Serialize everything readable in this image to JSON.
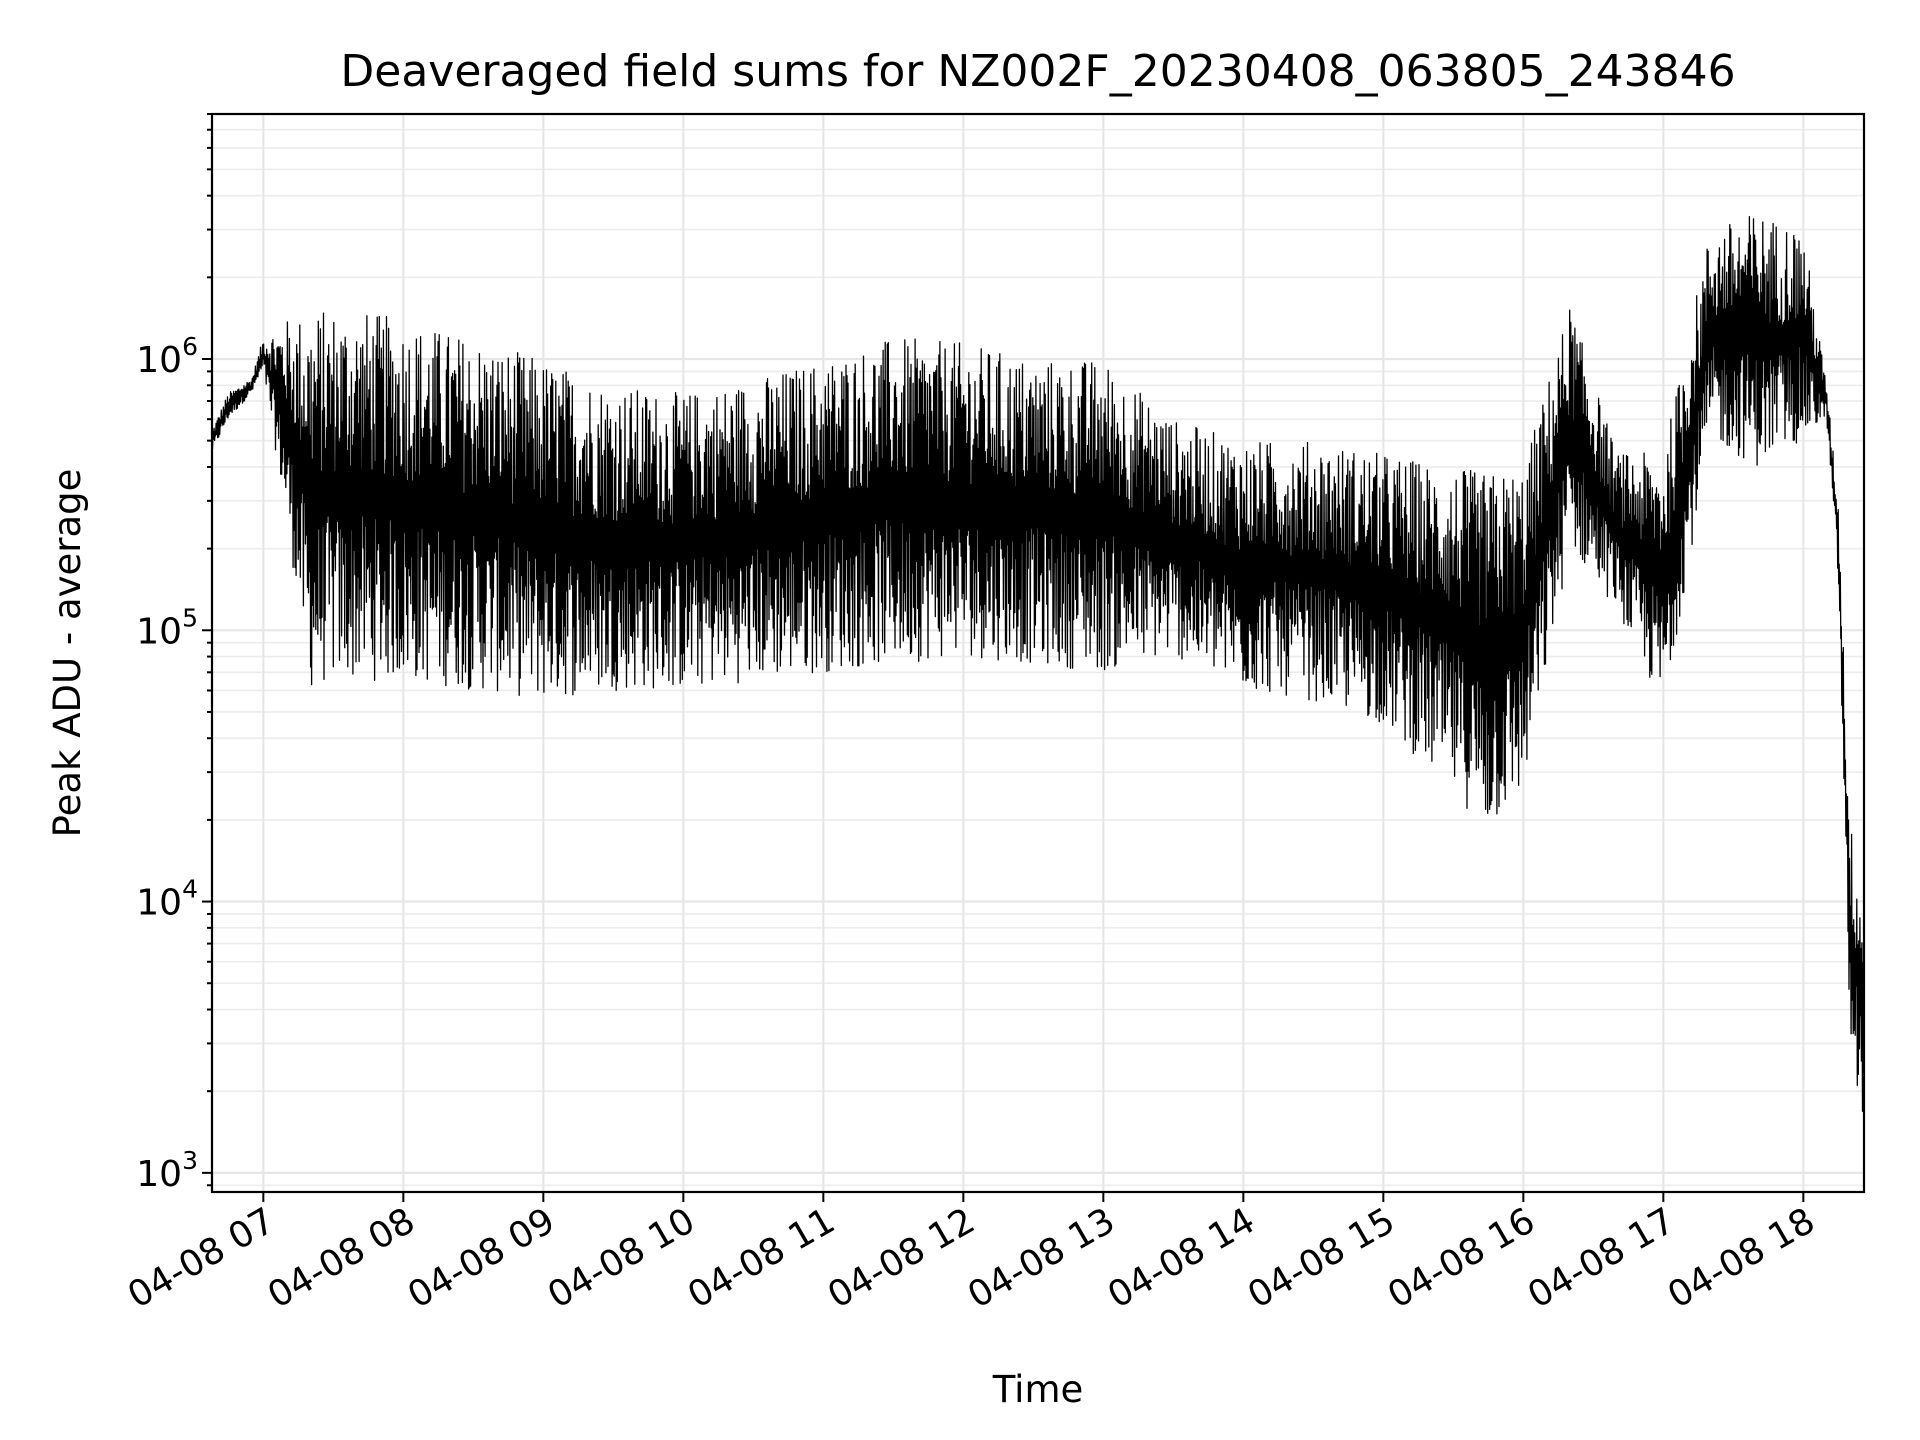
{
  "chart_data": {
    "type": "line",
    "title": "Deaveraged field sums for NZ002F_20230408_063805_243846",
    "xlabel": "Time",
    "ylabel": "Peak ADU - average",
    "yscale": "log",
    "ylim": [
      850,
      8000000
    ],
    "xlim": [
      "04-08 06:38",
      "04-08 18:26"
    ],
    "grid": true,
    "x_tick_labels": [
      "04-08 07",
      "04-08 08",
      "04-08 09",
      "04-08 10",
      "04-08 11",
      "04-08 12",
      "04-08 13",
      "04-08 14",
      "04-08 15",
      "04-08 16",
      "04-08 17",
      "04-08 18"
    ],
    "y_ticks": [
      {
        "base": "10",
        "exp": "3",
        "value": 1000
      },
      {
        "base": "10",
        "exp": "4",
        "value": 10000
      },
      {
        "base": "10",
        "exp": "5",
        "value": 100000
      },
      {
        "base": "10",
        "exp": "6",
        "value": 1000000
      }
    ],
    "series": [
      {
        "color": "#000000",
        "envelope_note_free": true,
        "x": [
          "04-08 06:38",
          "04-08 06:45",
          "04-08 06:55",
          "04-08 07:00",
          "04-08 07:10",
          "04-08 07:20",
          "04-08 07:30",
          "04-08 07:45",
          "04-08 08:00",
          "04-08 08:30",
          "04-08 09:00",
          "04-08 09:30",
          "04-08 10:00",
          "04-08 10:30",
          "04-08 11:00",
          "04-08 11:30",
          "04-08 12:00",
          "04-08 12:30",
          "04-08 13:00",
          "04-08 13:30",
          "04-08 14:00",
          "04-08 14:30",
          "04-08 15:00",
          "04-08 15:30",
          "04-08 15:45",
          "04-08 16:00",
          "04-08 16:20",
          "04-08 16:40",
          "04-08 17:00",
          "04-08 17:20",
          "04-08 17:40",
          "04-08 18:00",
          "04-08 18:10",
          "04-08 18:15",
          "04-08 18:20",
          "04-08 18:26"
        ],
        "y_high": [
          550000,
          750000,
          850000,
          1200000,
          1400000,
          1500000,
          1550000,
          1500000,
          1400000,
          1200000,
          1000000,
          800000,
          750000,
          850000,
          1000000,
          1200000,
          1150000,
          1000000,
          1000000,
          600000,
          500000,
          500000,
          450000,
          400000,
          380000,
          400000,
          1600000,
          450000,
          450000,
          3000000,
          3500000,
          3000000,
          800000,
          300000,
          20000,
          10000
        ],
        "y_low": [
          450000,
          600000,
          750000,
          900000,
          250000,
          60000,
          65000,
          65000,
          65000,
          60000,
          55000,
          60000,
          60000,
          65000,
          70000,
          75000,
          80000,
          75000,
          70000,
          80000,
          60000,
          55000,
          45000,
          25000,
          18000,
          25000,
          200000,
          120000,
          50000,
          500000,
          400000,
          500000,
          600000,
          150000,
          3000,
          1500
        ]
      }
    ]
  }
}
